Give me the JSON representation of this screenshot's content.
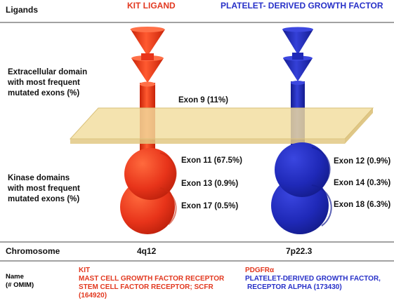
{
  "row_labels": {
    "ligands": "Ligands",
    "extracellular": [
      "Extracellular domain",
      "with most frequent",
      "mutated exons (%)"
    ],
    "kinase": [
      "Kinase domains",
      "with most frequent",
      "mutated exons (%)"
    ],
    "chromosome": "Chromosome",
    "name": [
      "Name",
      "(# OMIM)"
    ]
  },
  "kit": {
    "ligand": "KIT LIGAND",
    "exons": [
      "Exon 9 (11%)",
      "Exon 11 (67.5%)",
      "Exon 13 (0.9%)",
      "Exon 17 (0.5%)"
    ],
    "chromosome": "4q12",
    "name_lines": [
      "KIT",
      "MAST CELL GROWTH FACTOR RECEPTOR",
      "STEM CELL FACTOR RECEPTOR; SCFR",
      "(164920)"
    ],
    "color": "#e8341a"
  },
  "pdgfra": {
    "ligand": "PLATELET- DERIVED GROWTH FACTOR",
    "exons": [
      "Exon 12 (0.9%)",
      "Exon 14 (0.3%)",
      "Exon 18 (6.3%)"
    ],
    "chromosome": "7p22.3",
    "name_lines": [
      "PDGFRα",
      "PLATELET-DERIVED GROWTH FACTOR,",
      "RECEPTOR ALPHA (173430)"
    ],
    "color": "#1f29b8"
  },
  "colors": {
    "membrane": "#f2dd9e",
    "membrane_edge": "#d9c07a",
    "rule": "#333333"
  }
}
